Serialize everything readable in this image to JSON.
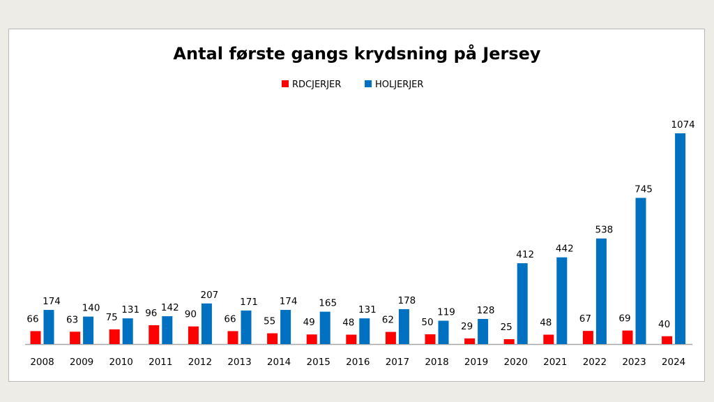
{
  "chart_data": {
    "type": "bar",
    "title": "Antal første gangs krydsning på Jersey",
    "legend_position": "top",
    "grid": false,
    "categories": [
      "2008",
      "2009",
      "2010",
      "2011",
      "2012",
      "2013",
      "2014",
      "2015",
      "2016",
      "2017",
      "2018",
      "2019",
      "2020",
      "2021",
      "2022",
      "2023",
      "2024"
    ],
    "series": [
      {
        "name": "RDCJERJER",
        "color": "#ff0000",
        "values": [
          66,
          63,
          75,
          96,
          90,
          66,
          55,
          49,
          48,
          62,
          50,
          29,
          25,
          48,
          67,
          69,
          40
        ]
      },
      {
        "name": "HOLJERJER",
        "color": "#0070c0",
        "values": [
          174,
          140,
          131,
          142,
          207,
          171,
          174,
          165,
          131,
          178,
          119,
          128,
          412,
          442,
          538,
          745,
          1074
        ]
      }
    ],
    "ylim": [
      0,
      1074
    ],
    "data_labels": true
  }
}
